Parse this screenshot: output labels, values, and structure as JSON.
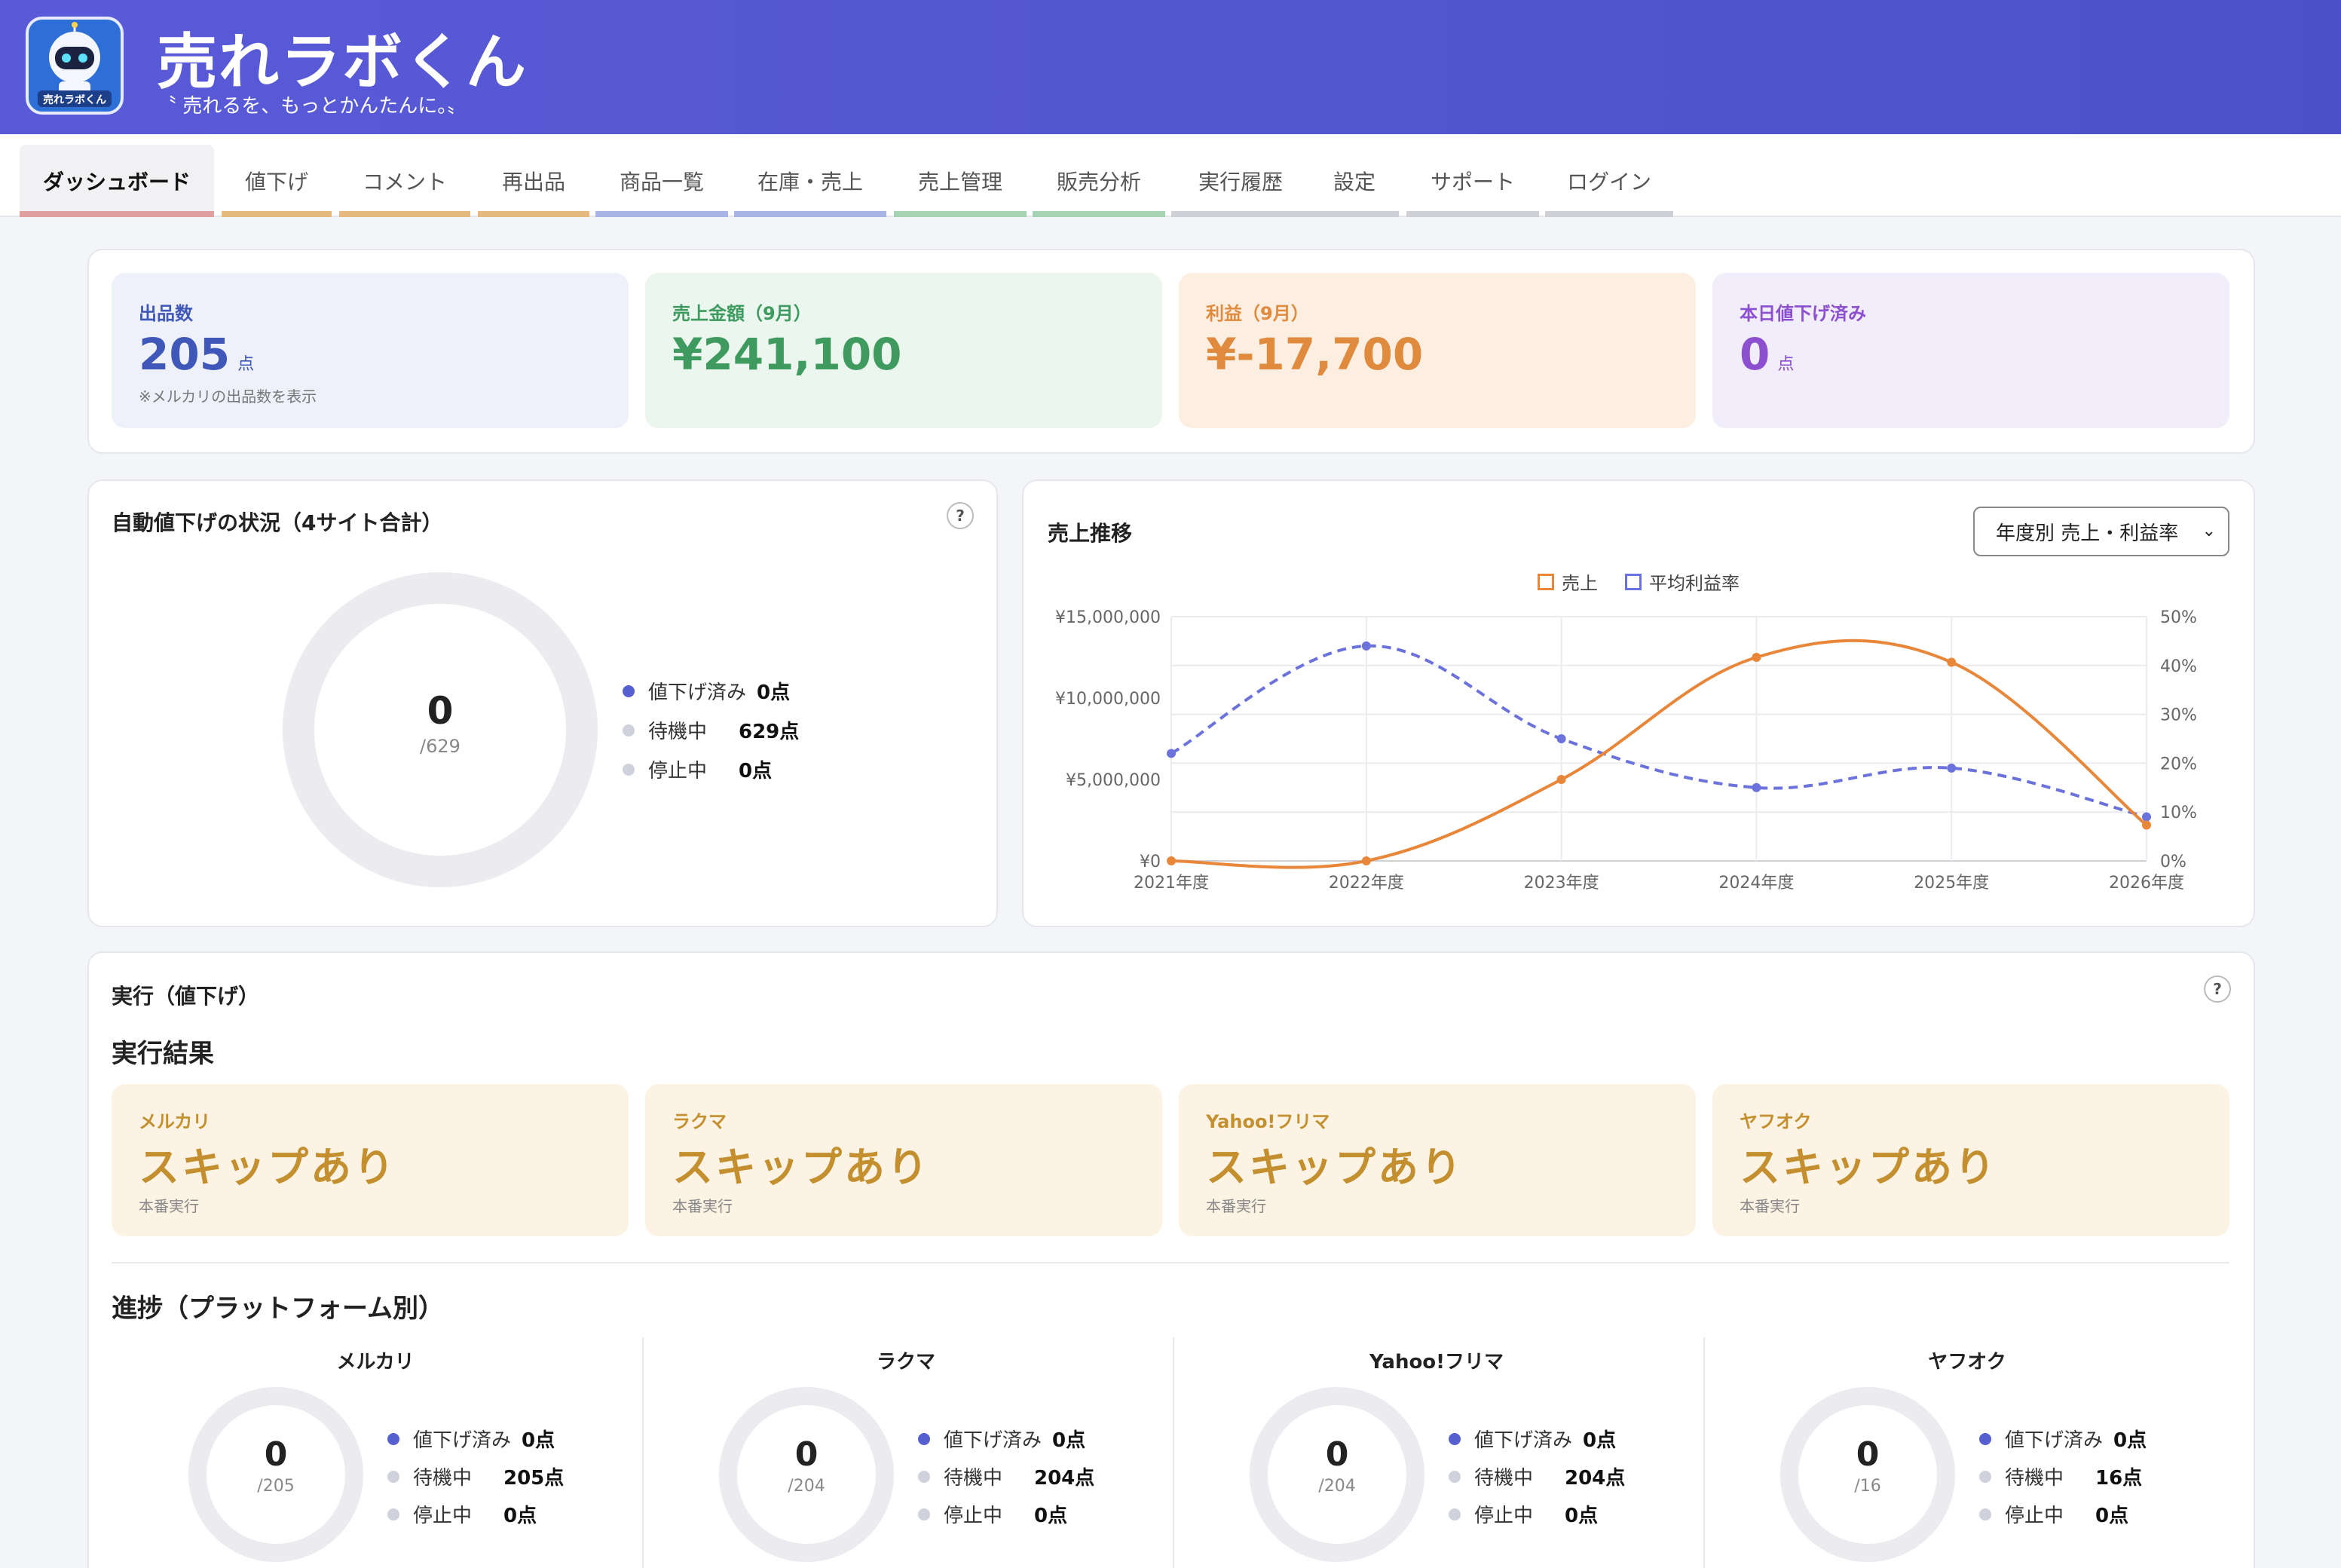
{
  "header": {
    "brand": "売れラボくん",
    "tagline": "〝 売れるを、もっとかんたんに。〟",
    "logo_icon": "robot-mascot-icon",
    "logo_label": "売れラボくん"
  },
  "nav": {
    "tabs": [
      {
        "label": "ダッシュボード",
        "color": "#e0a0a0",
        "active": true
      },
      {
        "label": "値下げ",
        "color": "#e5b97f"
      },
      {
        "label": "コメント",
        "color": "#e5b97f"
      },
      {
        "label": "再出品",
        "color": "#e5b97f"
      },
      {
        "label": "商品一覧",
        "color": "#a8b4e6"
      },
      {
        "label": "在庫・売上",
        "color": "#a8b4e6"
      },
      {
        "label": "売上管理",
        "color": "#a6d3b4"
      },
      {
        "label": "販売分析",
        "color": "#a6d3b4"
      },
      {
        "label": "実行履歴",
        "color": "#cfd0d6"
      },
      {
        "label": "設定",
        "color": "#cfd0d6"
      },
      {
        "label": "サポート",
        "color": "#cfd0d6"
      },
      {
        "label": "ログイン",
        "color": "#cfd0d6"
      }
    ]
  },
  "stats": [
    {
      "label": "出品数",
      "value": "205",
      "unit": "点",
      "note": "※メルカリの出品数を表示",
      "bg": "#eef1fa",
      "fg": "#3f57b8"
    },
    {
      "label": "売上金額（9月）",
      "value": "¥241,100",
      "unit": "",
      "note": "",
      "bg": "#eaf6ee",
      "fg": "#3f9a60"
    },
    {
      "label": "利益（9月）",
      "value": "¥-17,700",
      "unit": "",
      "note": "",
      "bg": "#fcefe2",
      "fg": "#df8a3c"
    },
    {
      "label": "本日値下げ済み",
      "value": "0",
      "unit": "点",
      "note": "",
      "bg": "#f1edfa",
      "fg": "#8c4fd0"
    }
  ],
  "auto": {
    "title": "自動値下げの状況（4サイト合計）",
    "help": "?",
    "center_value": "0",
    "center_total": "/629",
    "legend": [
      {
        "label": "値下げ済み",
        "value": "0点",
        "color": "#5660d0"
      },
      {
        "label": "待機中",
        "value": "629点",
        "color": "#cfd1dc"
      },
      {
        "label": "停止中",
        "value": "0点",
        "color": "#cfd1dc"
      }
    ]
  },
  "trend": {
    "title": "売上推移",
    "select_value": "年度別 売上・利益率",
    "legend_sales": "売上",
    "legend_margin": "平均利益率",
    "sales_color": "#e8873a",
    "margin_color": "#6b72dc"
  },
  "chart_data": {
    "type": "line",
    "x": [
      "2021年度",
      "2022年度",
      "2023年度",
      "2024年度",
      "2025年度",
      "2026年度"
    ],
    "series": [
      {
        "name": "売上",
        "axis": "left",
        "values": [
          0,
          0,
          5000000,
          12500000,
          12200000,
          2200000
        ]
      },
      {
        "name": "平均利益率",
        "axis": "right",
        "values": [
          22,
          44,
          25,
          15,
          19,
          9
        ]
      }
    ],
    "y_left_ticks": [
      "¥0",
      "¥5,000,000",
      "¥10,000,000",
      "¥15,000,000"
    ],
    "y_right_ticks": [
      "0%",
      "10%",
      "20%",
      "30%",
      "40%",
      "50%"
    ],
    "ylim_left": [
      0,
      15000000
    ],
    "ylim_right": [
      0,
      50
    ],
    "legend_position": "top-center",
    "grid": true
  },
  "run": {
    "title": "実行（値下げ）",
    "help": "?",
    "results_title": "実行結果",
    "cards": [
      {
        "site": "メルカリ",
        "state": "スキップあり",
        "mode": "本番実行"
      },
      {
        "site": "ラクマ",
        "state": "スキップあり",
        "mode": "本番実行"
      },
      {
        "site": "Yahoo!フリマ",
        "state": "スキップあり",
        "mode": "本番実行"
      },
      {
        "site": "ヤフオク",
        "state": "スキップあり",
        "mode": "本番実行"
      }
    ],
    "progress_title": "進捗（プラットフォーム別）",
    "platforms": [
      {
        "name": "メルカリ",
        "center": "0",
        "total": "/205",
        "done_label": "値下げ済み",
        "done": "0点",
        "wait_label": "待機中",
        "wait": "205点",
        "stop_label": "停止中",
        "stop": "0点"
      },
      {
        "name": "ラクマ",
        "center": "0",
        "total": "/204",
        "done_label": "値下げ済み",
        "done": "0点",
        "wait_label": "待機中",
        "wait": "204点",
        "stop_label": "停止中",
        "stop": "0点"
      },
      {
        "name": "Yahoo!フリマ",
        "center": "0",
        "total": "/204",
        "done_label": "値下げ済み",
        "done": "0点",
        "wait_label": "待機中",
        "wait": "204点",
        "stop_label": "停止中",
        "stop": "0点"
      },
      {
        "name": "ヤフオク",
        "center": "0",
        "total": "/16",
        "done_label": "値下げ済み",
        "done": "0点",
        "wait_label": "待機中",
        "wait": "16点",
        "stop_label": "停止中",
        "stop": "0点"
      }
    ]
  }
}
